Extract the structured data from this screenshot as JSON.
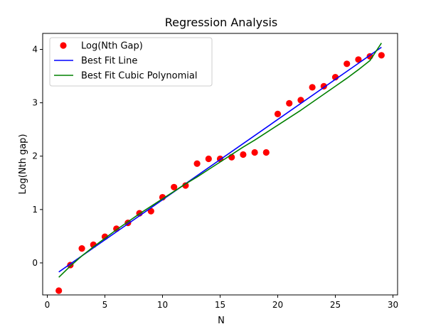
{
  "chart_data": {
    "type": "scatter",
    "title": "Regression Analysis",
    "xlabel": "N",
    "ylabel": "Log(Nth gap)",
    "xlim": [
      -0.4,
      30.4
    ],
    "ylim": [
      -0.6,
      4.3
    ],
    "xticks": [
      0,
      5,
      10,
      15,
      20,
      25,
      30
    ],
    "yticks": [
      0,
      1,
      2,
      3,
      4
    ],
    "grid": false,
    "legend_position": "top-left",
    "series": [
      {
        "name": "Log(Nth Gap)",
        "kind": "markers",
        "color": "#ff0000",
        "x": [
          1,
          2,
          3,
          4,
          5,
          6,
          7,
          8,
          9,
          10,
          11,
          12,
          13,
          14,
          15,
          16,
          17,
          18,
          19,
          20,
          21,
          22,
          23,
          24,
          25,
          26,
          27,
          28,
          29
        ],
        "y": [
          -0.52,
          -0.04,
          0.27,
          0.34,
          0.49,
          0.64,
          0.75,
          0.93,
          0.97,
          1.23,
          1.42,
          1.45,
          1.86,
          1.95,
          1.95,
          1.98,
          2.03,
          2.07,
          2.07,
          2.79,
          2.99,
          3.05,
          3.29,
          3.31,
          3.48,
          3.73,
          3.81,
          3.87,
          3.89
        ]
      },
      {
        "name": "Best Fit Line",
        "kind": "line",
        "color": "#0000ff",
        "x": [
          1,
          29
        ],
        "y": [
          -0.17,
          4.04
        ]
      },
      {
        "name": "Best Fit Cubic Polynomial",
        "kind": "line",
        "color": "#008000",
        "x": [
          1,
          2,
          3,
          4,
          5,
          6,
          7,
          8,
          9,
          10,
          11,
          12,
          13,
          14,
          15,
          16,
          17,
          18,
          19,
          20,
          21,
          22,
          23,
          24,
          25,
          26,
          27,
          28,
          29
        ],
        "y": [
          -0.27,
          -0.06,
          0.13,
          0.3,
          0.46,
          0.62,
          0.77,
          0.92,
          1.06,
          1.2,
          1.34,
          1.48,
          1.61,
          1.75,
          1.89,
          2.03,
          2.17,
          2.3,
          2.44,
          2.58,
          2.72,
          2.86,
          3.01,
          3.16,
          3.31,
          3.46,
          3.62,
          3.79,
          4.12
        ]
      }
    ]
  }
}
